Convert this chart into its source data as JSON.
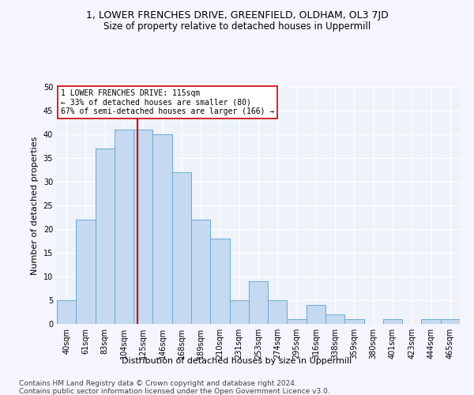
{
  "title1": "1, LOWER FRENCHES DRIVE, GREENFIELD, OLDHAM, OL3 7JD",
  "title2": "Size of property relative to detached houses in Uppermill",
  "xlabel": "Distribution of detached houses by size in Uppermill",
  "ylabel": "Number of detached properties",
  "bar_labels": [
    "40sqm",
    "61sqm",
    "83sqm",
    "104sqm",
    "125sqm",
    "146sqm",
    "168sqm",
    "189sqm",
    "210sqm",
    "231sqm",
    "253sqm",
    "274sqm",
    "295sqm",
    "316sqm",
    "338sqm",
    "359sqm",
    "380sqm",
    "401sqm",
    "423sqm",
    "444sqm",
    "465sqm"
  ],
  "bar_values": [
    5,
    22,
    37,
    41,
    41,
    40,
    32,
    22,
    18,
    5,
    9,
    5,
    1,
    4,
    2,
    1,
    0,
    1,
    0,
    1,
    1
  ],
  "bar_color": "#c5d9f0",
  "bar_edgecolor": "#6aaad4",
  "vline_x": 3.72,
  "vline_color": "#cc0000",
  "annotation_text": "1 LOWER FRENCHES DRIVE: 115sqm\n← 33% of detached houses are smaller (80)\n67% of semi-detached houses are larger (166) →",
  "annotation_box_color": "#ffffff",
  "annotation_box_edgecolor": "#cc0000",
  "ylim": [
    0,
    50
  ],
  "yticks": [
    0,
    5,
    10,
    15,
    20,
    25,
    30,
    35,
    40,
    45,
    50
  ],
  "footer1": "Contains HM Land Registry data © Crown copyright and database right 2024.",
  "footer2": "Contains public sector information licensed under the Open Government Licence v3.0.",
  "bg_color": "#eef2fa",
  "grid_color": "#ffffff",
  "title1_fontsize": 9,
  "title2_fontsize": 8.5,
  "xlabel_fontsize": 8,
  "ylabel_fontsize": 8,
  "tick_fontsize": 7,
  "footer_fontsize": 6.5,
  "annotation_fontsize": 7
}
